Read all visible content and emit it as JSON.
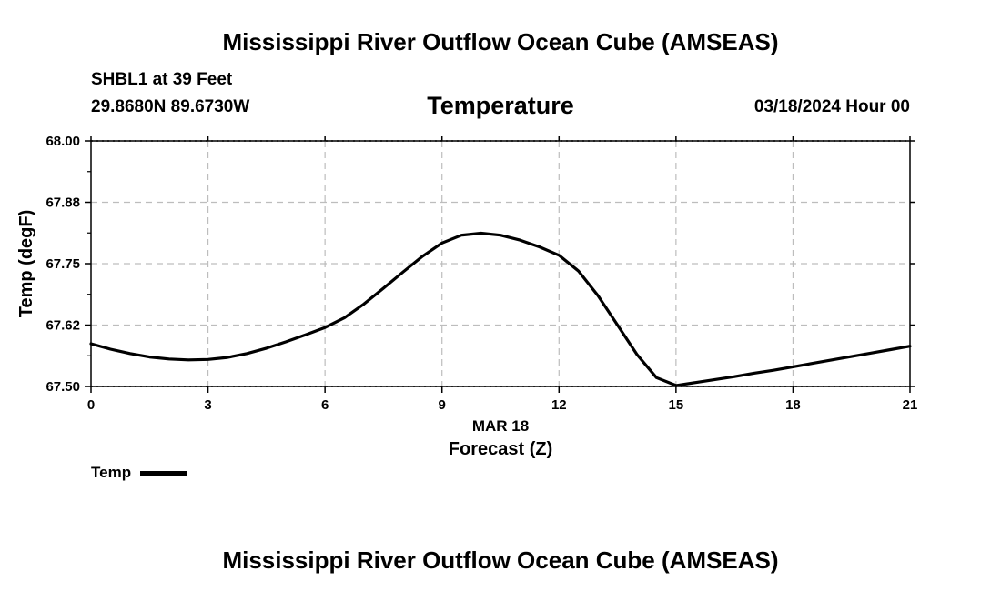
{
  "header": {
    "title": "Mississippi River Outflow Ocean Cube (AMSEAS)",
    "station": "SHBL1 at 39 Feet",
    "coords": "29.8680N  89.6730W",
    "subtitle": "Temperature",
    "date": "03/18/2024 Hour 00",
    "footer_title": "Mississippi River Outflow Ocean Cube (AMSEAS)"
  },
  "legend": {
    "label": "Temp"
  },
  "chart_data": {
    "type": "line",
    "title": "Temperature",
    "xlabel": "Forecast (Z)",
    "xlabel_date": "MAR 18",
    "ylabel": "Temp (degF)",
    "xlim": [
      0,
      21
    ],
    "ylim": [
      67.5,
      68.0
    ],
    "x_ticks": [
      0,
      3,
      6,
      9,
      12,
      15,
      18,
      21
    ],
    "y_ticks": [
      67.5,
      67.625,
      67.75,
      67.875,
      68.0
    ],
    "y_tick_labels": [
      "67.50",
      "67.62",
      "67.75",
      "67.88",
      "68.00"
    ],
    "grid": true,
    "legend_position": "bottom-left",
    "series": [
      {
        "name": "Temp",
        "color": "#000000",
        "x": [
          0,
          0.5,
          1,
          1.5,
          2,
          2.5,
          3,
          3.5,
          4,
          4.5,
          5,
          5.5,
          6,
          6.5,
          7,
          7.5,
          8,
          8.5,
          9,
          9.5,
          10,
          10.5,
          11,
          11.5,
          12,
          12.5,
          13,
          13.5,
          14,
          14.5,
          15,
          15.5,
          16,
          16.5,
          17,
          17.5,
          18,
          18.5,
          19,
          19.5,
          20,
          20.5,
          21
        ],
        "values": [
          67.587,
          67.576,
          67.567,
          67.56,
          67.556,
          67.554,
          67.555,
          67.559,
          67.567,
          67.578,
          67.591,
          67.605,
          67.62,
          67.64,
          67.668,
          67.7,
          67.733,
          67.765,
          67.792,
          67.808,
          67.812,
          67.808,
          67.798,
          67.784,
          67.767,
          67.735,
          67.685,
          67.625,
          67.565,
          67.518,
          67.502,
          67.508,
          67.514,
          67.52,
          67.527,
          67.533,
          67.54,
          67.547,
          67.554,
          67.561,
          67.568,
          67.575,
          67.582
        ]
      }
    ]
  }
}
